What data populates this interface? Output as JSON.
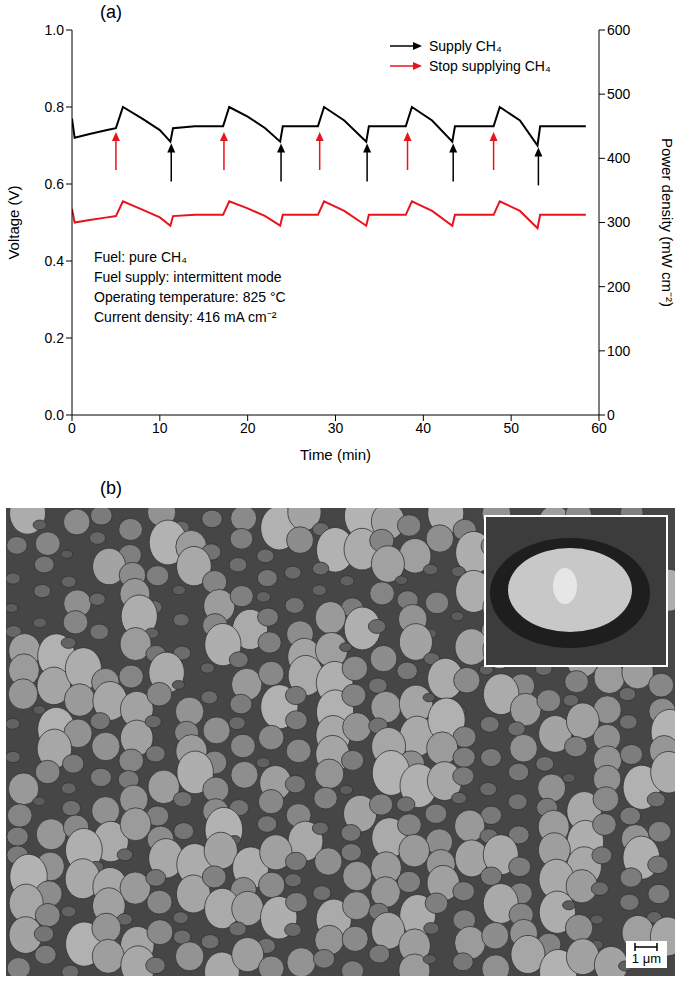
{
  "chart_data": {
    "type": "line",
    "title": "(a)",
    "xlabel": "Time (min)",
    "ylabel": "Voltage (V)",
    "y2label": "Power density (mW cm⁻²)",
    "x": [
      0,
      0.3,
      2,
      4,
      5,
      5.8,
      8,
      10,
      11.2,
      11.5,
      14,
      17.2,
      17.9,
      20,
      22,
      23.7,
      24,
      28,
      28.7,
      31,
      33.5,
      33.8,
      38,
      38.7,
      41,
      43.3,
      43.6,
      48,
      48.7,
      51,
      53,
      53.3,
      58.5
    ],
    "xlim": [
      0,
      60
    ],
    "xticks": [
      0,
      10,
      20,
      30,
      40,
      50,
      60
    ],
    "ylim": [
      0,
      1
    ],
    "yticks": [
      {
        "value": 0,
        "label": "0.0"
      },
      0.2,
      0.4,
      0.6,
      0.8,
      {
        "value": 1,
        "label": "1.0"
      }
    ],
    "y2lim": [
      0,
      600
    ],
    "y2ticks": [
      0,
      100,
      200,
      300,
      400,
      500,
      600
    ],
    "series": [
      {
        "color": "#000000",
        "values": [
          0.77,
          0.72,
          0.73,
          0.74,
          0.745,
          0.8,
          0.77,
          0.74,
          0.71,
          0.745,
          0.75,
          0.75,
          0.8,
          0.775,
          0.745,
          0.71,
          0.75,
          0.75,
          0.8,
          0.765,
          0.71,
          0.75,
          0.75,
          0.8,
          0.765,
          0.71,
          0.75,
          0.75,
          0.8,
          0.765,
          0.7,
          0.75,
          0.75
        ]
      },
      {
        "color": "#e8141c",
        "axis": "y2",
        "values": [
          321,
          300,
          304,
          308,
          310,
          333,
          320,
          308,
          295,
          310,
          312,
          312,
          333,
          322,
          310,
          295,
          312,
          312,
          333,
          318,
          295,
          312,
          312,
          333,
          318,
          295,
          312,
          312,
          333,
          318,
          291,
          312,
          312
        ]
      }
    ],
    "markers": [
      {
        "name": "Supply CH₄",
        "color": "#000000",
        "marker": "arrow",
        "x": [
          11.3,
          23.8,
          33.6,
          43.4,
          53.1
        ],
        "y": [
          0.705,
          0.705,
          0.705,
          0.705,
          0.695
        ]
      },
      {
        "name": "Stop supplying CH₄",
        "color": "#e8141c",
        "marker": "arrow",
        "x": [
          5,
          17.3,
          28.2,
          38.2,
          48
        ],
        "y": [
          0.735,
          0.735,
          0.735,
          0.735,
          0.735
        ]
      }
    ],
    "annotations": [
      "Fuel: pure CH₄",
      "Fuel supply: intermittent  mode",
      "Operating temperature: 825 °C",
      "Current density: 416 mA cm⁻²"
    ],
    "legend": "upper right"
  },
  "image": {
    "title": "(b)",
    "scale_bar": "1 μm"
  }
}
